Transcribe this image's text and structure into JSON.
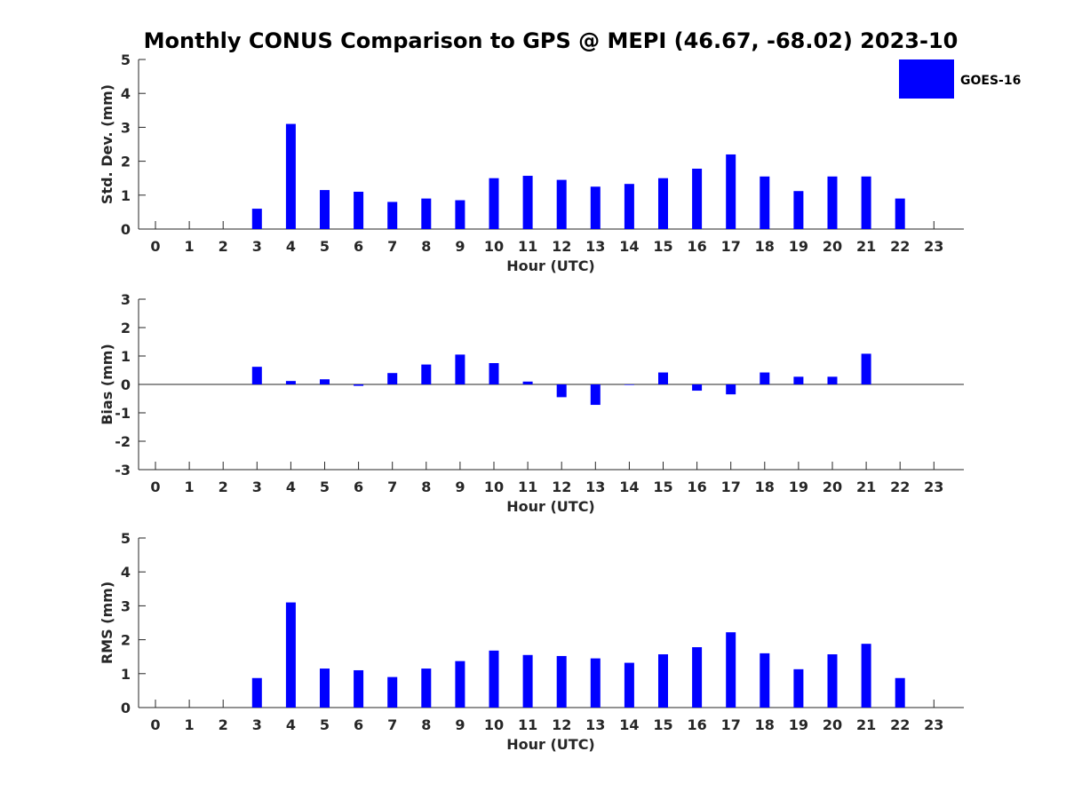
{
  "title": "Monthly CONUS Comparison to GPS @ MEPI (46.67, -68.02) 2023-10",
  "legend": {
    "label": "GOES-16",
    "color": "#0000ff",
    "placement": "top-right"
  },
  "chart_data": [
    {
      "type": "bar",
      "name": "std-dev",
      "xlabel": "Hour (UTC)",
      "ylabel": "Std. Dev. (mm)",
      "ylim": [
        0,
        5
      ],
      "yticks": [
        "0",
        "1",
        "2",
        "3",
        "4",
        "5"
      ],
      "categories": [
        "0",
        "1",
        "2",
        "3",
        "4",
        "5",
        "6",
        "7",
        "8",
        "9",
        "10",
        "11",
        "12",
        "13",
        "14",
        "15",
        "16",
        "17",
        "18",
        "19",
        "20",
        "21",
        "22",
        "23"
      ],
      "series": [
        {
          "name": "GOES-16",
          "color": "#0000ff",
          "values": [
            null,
            null,
            null,
            0.6,
            3.1,
            1.15,
            1.1,
            0.8,
            0.9,
            0.85,
            1.5,
            1.57,
            1.45,
            1.25,
            1.33,
            1.5,
            1.78,
            2.2,
            1.55,
            1.12,
            1.55,
            1.55,
            0.9,
            null
          ]
        }
      ]
    },
    {
      "type": "bar",
      "name": "bias",
      "xlabel": "Hour (UTC)",
      "ylabel": "Bias (mm)",
      "ylim": [
        -3,
        3
      ],
      "yticks": [
        "-3",
        "-2",
        "-1",
        "0",
        "1",
        "2",
        "3"
      ],
      "zero_line": true,
      "categories": [
        "0",
        "1",
        "2",
        "3",
        "4",
        "5",
        "6",
        "7",
        "8",
        "9",
        "10",
        "11",
        "12",
        "13",
        "14",
        "15",
        "16",
        "17",
        "18",
        "19",
        "20",
        "21",
        "22",
        "23"
      ],
      "series": [
        {
          "name": "GOES-16",
          "color": "#0000ff",
          "values": [
            null,
            null,
            null,
            0.62,
            0.12,
            0.18,
            -0.05,
            0.4,
            0.7,
            1.05,
            0.75,
            0.1,
            -0.45,
            -0.72,
            -0.02,
            0.42,
            -0.22,
            -0.35,
            0.42,
            0.27,
            0.27,
            1.08,
            null,
            null
          ]
        }
      ]
    },
    {
      "type": "bar",
      "name": "rms",
      "xlabel": "Hour (UTC)",
      "ylabel": "RMS (mm)",
      "ylim": [
        0,
        5
      ],
      "yticks": [
        "0",
        "1",
        "2",
        "3",
        "4",
        "5"
      ],
      "categories": [
        "0",
        "1",
        "2",
        "3",
        "4",
        "5",
        "6",
        "7",
        "8",
        "9",
        "10",
        "11",
        "12",
        "13",
        "14",
        "15",
        "16",
        "17",
        "18",
        "19",
        "20",
        "21",
        "22",
        "23"
      ],
      "series": [
        {
          "name": "GOES-16",
          "color": "#0000ff",
          "values": [
            null,
            null,
            null,
            0.87,
            3.1,
            1.15,
            1.1,
            0.9,
            1.15,
            1.37,
            1.68,
            1.55,
            1.52,
            1.45,
            1.32,
            1.57,
            1.78,
            2.22,
            1.6,
            1.13,
            1.57,
            1.88,
            0.87,
            null
          ]
        }
      ]
    }
  ]
}
